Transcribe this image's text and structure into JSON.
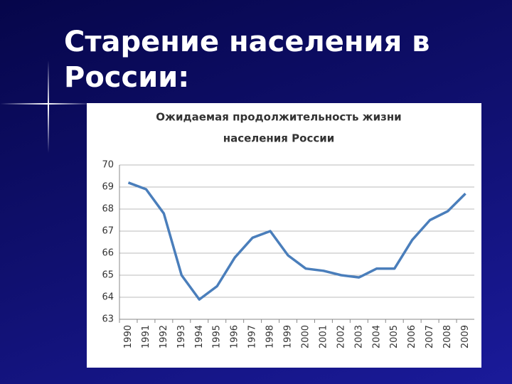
{
  "slide_title": [
    "Старение населения в",
    "России:"
  ],
  "chart_data": {
    "type": "line",
    "title": [
      "Ожидаемая продолжительность жизни",
      "населения России"
    ],
    "categories": [
      "1990",
      "1991",
      "1992",
      "1993",
      "1994",
      "1995",
      "1996",
      "1997",
      "1998",
      "1999",
      "2000",
      "2001",
      "2002",
      "2003",
      "2004",
      "2005",
      "2006",
      "2007",
      "2008",
      "2009"
    ],
    "values": [
      69.2,
      68.9,
      67.8,
      65.0,
      63.9,
      64.5,
      65.8,
      66.7,
      67.0,
      65.9,
      65.3,
      65.2,
      65.0,
      64.9,
      65.3,
      65.3,
      66.6,
      67.5,
      67.9,
      68.7
    ],
    "color": "#4a7ebb",
    "ylim": [
      63,
      70
    ],
    "yticks": [
      63,
      64,
      65,
      66,
      67,
      68,
      69,
      70
    ],
    "grid": true
  }
}
